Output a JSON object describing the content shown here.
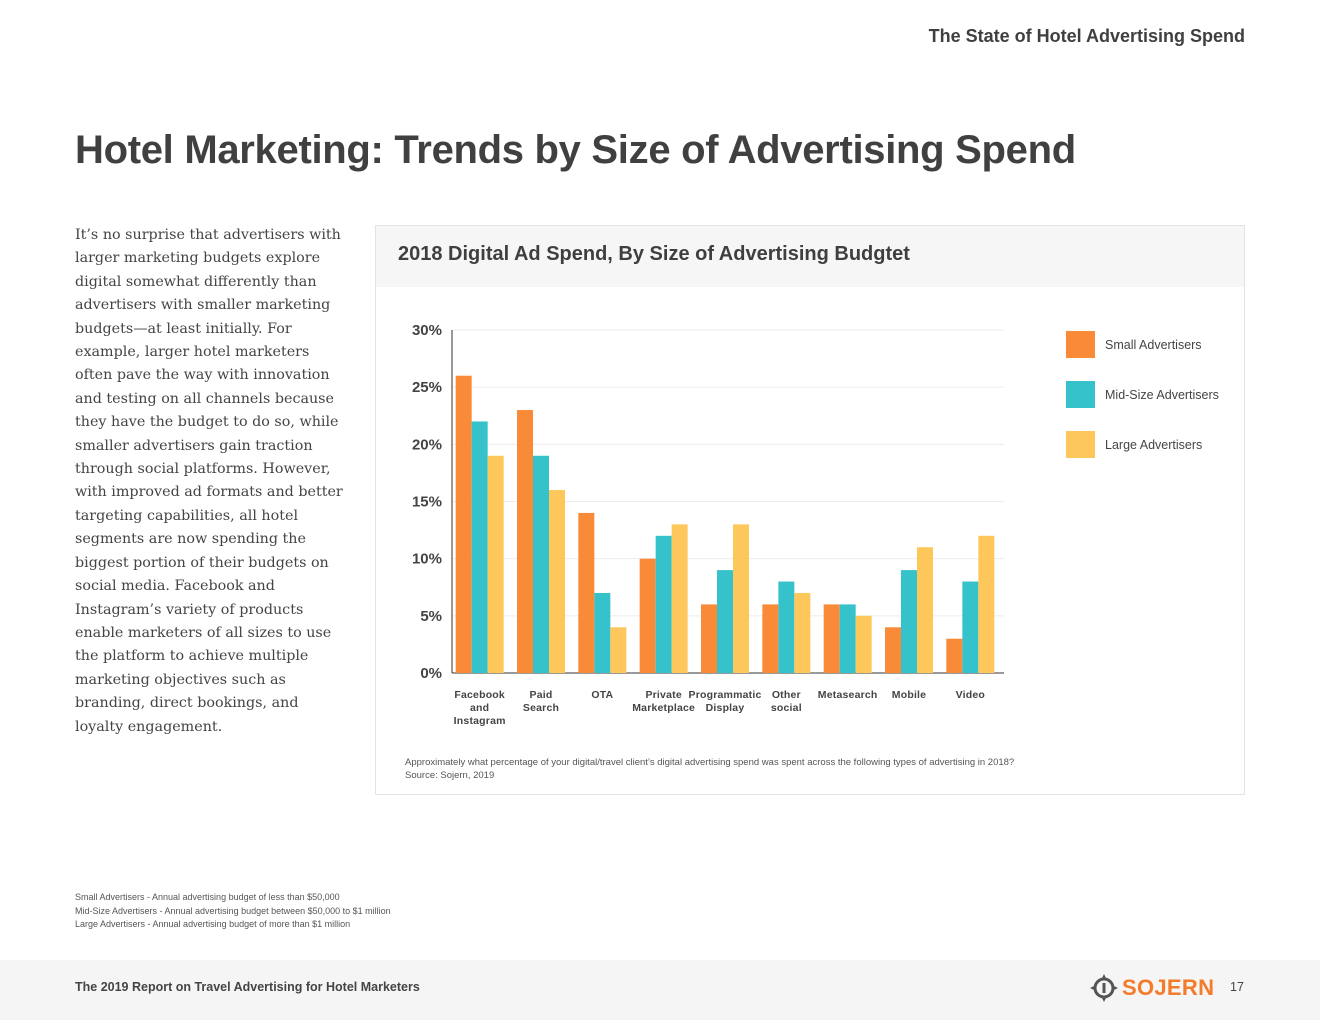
{
  "header": {
    "report_title": "The State of Hotel Advertising Spend"
  },
  "page_title": "Hotel Marketing: Trends by Size of Advertising Spend",
  "body_text": "It’s no surprise that advertisers with larger marketing budgets explore digital somewhat differently than advertisers with smaller marketing budgets—at least initially. For example, larger hotel marketers often pave the way with innovation and testing on all channels because they have the budget to do so, while smaller advertisers gain traction through social platforms. However, with improved ad formats and better targeting capabilities, all hotel segments are now spending the biggest portion of their budgets on social media. Facebook and Instagram’s variety of products enable marketers of all sizes to use the platform to achieve multiple marketing objectives such as branding, direct bookings, and loyalty engagement.",
  "chart_data": {
    "type": "bar",
    "title": "2018 Digital Ad Spend, By Size of Advertising Budgtet",
    "categories": [
      [
        "Facebook",
        "and",
        "Instagram"
      ],
      [
        "Paid",
        "Search"
      ],
      [
        "OTA"
      ],
      [
        "Private",
        "Marketplace"
      ],
      [
        "Programmatic",
        "Display"
      ],
      [
        "Other",
        "social"
      ],
      [
        "Metasearch"
      ],
      [
        "Mobile"
      ],
      [
        "Video"
      ]
    ],
    "series": [
      {
        "name": "Small Advertisers",
        "color": "#f98a38",
        "values": [
          26,
          23,
          14,
          10,
          6,
          6,
          6,
          4,
          3
        ]
      },
      {
        "name": "Mid-Size Advertisers",
        "color": "#36c2cb",
        "values": [
          22,
          19,
          7,
          12,
          9,
          8,
          6,
          9,
          8
        ]
      },
      {
        "name": "Large Advertisers",
        "color": "#fdc75b",
        "values": [
          19,
          16,
          4,
          13,
          13,
          7,
          5,
          11,
          12
        ]
      }
    ],
    "yticks": [
      "0%",
      "5%",
      "10%",
      "15%",
      "20%",
      "25%",
      "30%"
    ],
    "ylim": [
      0,
      30
    ],
    "xlabel": "",
    "ylabel": "",
    "legend_position": "right",
    "grid": true
  },
  "chart_note": {
    "question": "Approximately what percentage of your digital/travel client’s digital advertising spend was spent across the following types of advertising in 2018?",
    "source": "Source: Sojern, 2019"
  },
  "definitions": [
    "Small Advertisers - Annual advertising budget of less than $50,000",
    "Mid-Size Advertisers - Annual advertising budget between $50,000 to $1 million",
    "Large Advertisers - Annual advertising budget of more than $1 million"
  ],
  "footer": {
    "report_name": "The 2019 Report on Travel Advertising for Hotel Marketers",
    "logo_text": "SOJERN",
    "page_number": "17"
  }
}
